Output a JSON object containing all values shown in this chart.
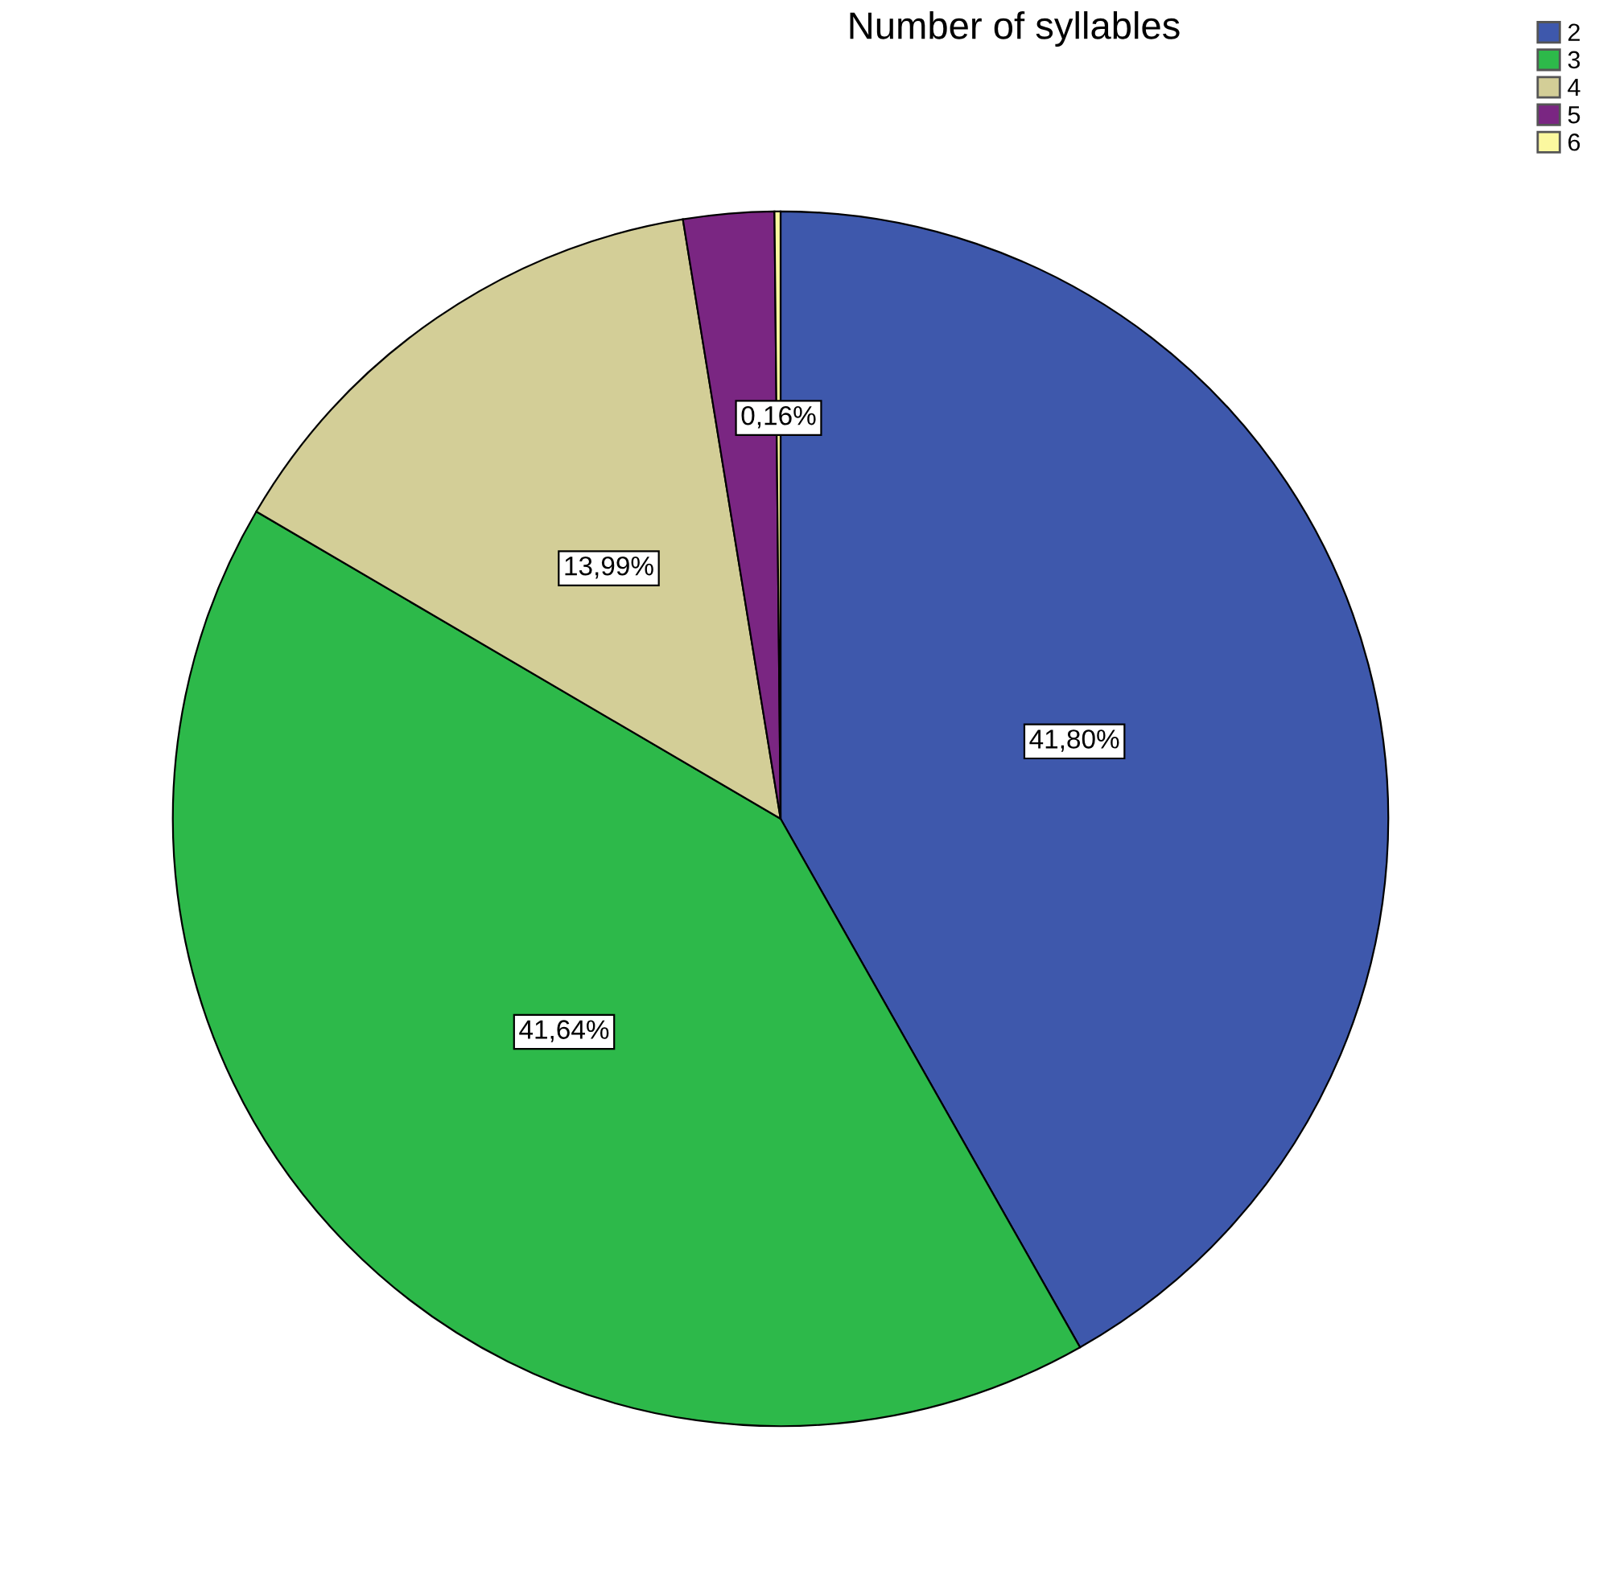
{
  "chart_data": {
    "type": "pie",
    "title": "Number of syllables",
    "categories": [
      "2",
      "3",
      "4",
      "5",
      "6"
    ],
    "values": [
      41.8,
      41.64,
      13.99,
      2.41,
      0.16
    ],
    "colors": [
      "#3e58ac",
      "#2db94a",
      "#d3ce97",
      "#7a2682",
      "#fbf89f"
    ],
    "value_labels": [
      "41,80%",
      "41,64%",
      "13,99%",
      null,
      "0,16%"
    ],
    "legend": "top right"
  }
}
